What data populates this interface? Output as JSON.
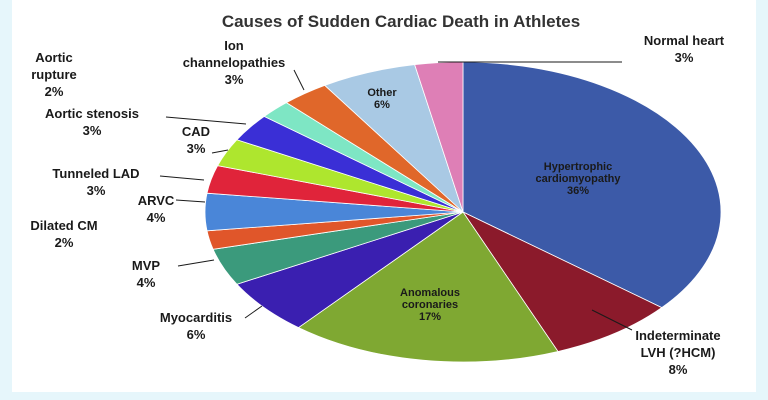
{
  "chart_data": {
    "type": "pie",
    "title": "Causes of Sudden Cardiac Death in Athletes",
    "slices": [
      {
        "key": "hcm",
        "lines": [
          "Hypertrophic",
          "cardiomyopathy",
          "36%"
        ],
        "value": 36,
        "color": "#3c5aa8",
        "label_pos": "inside"
      },
      {
        "key": "lvh",
        "lines": [
          "Indeterminate",
          "LVH (?HCM)",
          "8%"
        ],
        "value": 8,
        "color": "#8b1a2b",
        "label_pos": "outside"
      },
      {
        "key": "anom",
        "lines": [
          "Anomalous",
          "coronaries",
          "17%"
        ],
        "value": 17,
        "color": "#7fa832",
        "label_pos": "inside"
      },
      {
        "key": "myo",
        "lines": [
          "Myocarditis",
          "6%"
        ],
        "value": 6,
        "color": "#3a1fb0",
        "label_pos": "outside"
      },
      {
        "key": "mvp",
        "lines": [
          "MVP",
          "4%"
        ],
        "value": 4,
        "color": "#3b9a7c",
        "label_pos": "outside"
      },
      {
        "key": "dcm",
        "lines": [
          "Dilated CM",
          "2%"
        ],
        "value": 2,
        "color": "#e0562a",
        "label_pos": "outside"
      },
      {
        "key": "arvc",
        "lines": [
          "ARVC",
          "4%"
        ],
        "value": 4,
        "color": "#4a86d8",
        "label_pos": "outside"
      },
      {
        "key": "tlad",
        "lines": [
          "Tunneled LAD",
          "3%"
        ],
        "value": 3,
        "color": "#e0243a",
        "label_pos": "outside"
      },
      {
        "key": "cad",
        "lines": [
          "CAD",
          "3%"
        ],
        "value": 3,
        "color": "#aee62e",
        "label_pos": "outside"
      },
      {
        "key": "as",
        "lines": [
          "Aortic stenosis",
          "3%"
        ],
        "value": 3,
        "color": "#3a2fd6",
        "label_pos": "outside"
      },
      {
        "key": "ar",
        "lines": [
          "Aortic",
          "rupture",
          "2%"
        ],
        "value": 2,
        "color": "#7ee6c4",
        "label_pos": "outside"
      },
      {
        "key": "ion",
        "lines": [
          "Ion",
          "channelopathies",
          "3%"
        ],
        "value": 3,
        "color": "#e0672a",
        "label_pos": "outside"
      },
      {
        "key": "other",
        "lines": [
          "Other",
          "6%"
        ],
        "value": 6,
        "color": "#a9c9e4",
        "label_pos": "inside"
      },
      {
        "key": "nh",
        "lines": [
          "Normal heart",
          "3%"
        ],
        "value": 3,
        "color": "#de7fb6",
        "label_pos": "outside"
      }
    ]
  }
}
